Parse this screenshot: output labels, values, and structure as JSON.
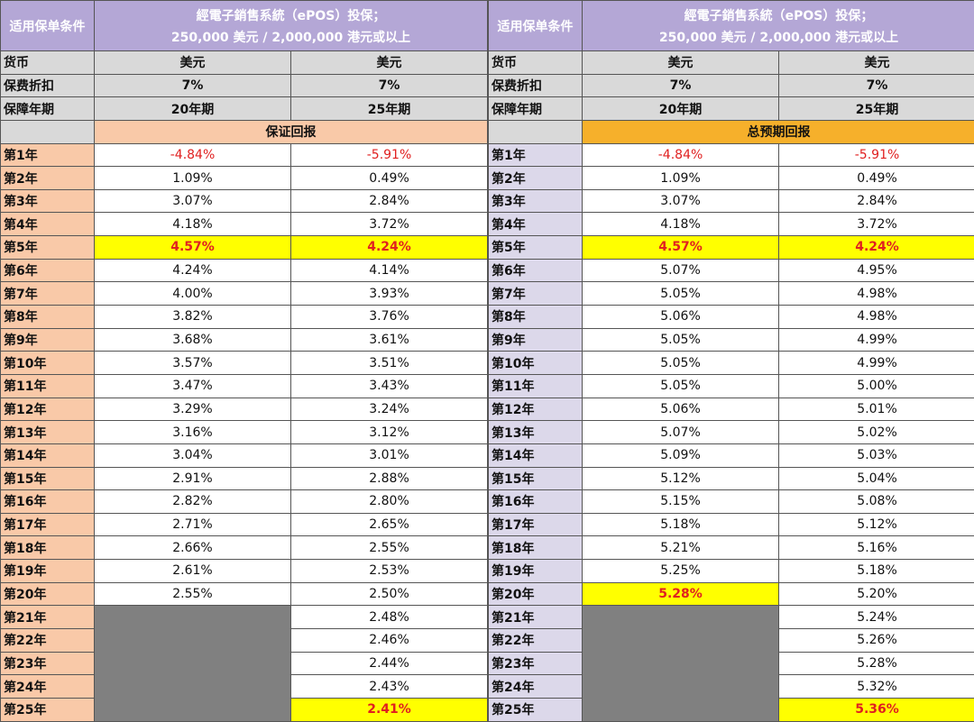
{
  "corner_label": "适用保单条件",
  "header_line1": "經電子銷售系統（ePOS）投保；",
  "header_line2": "250,000 美元 / 2,000,000 港元或以上",
  "currency_label": "货币",
  "currency_values": [
    "美元",
    "美元"
  ],
  "discount_label": "保费折扣",
  "discount_values": [
    "7%",
    "7%"
  ],
  "term_label": "保障年期",
  "term_values": [
    "20年期",
    "25年期"
  ],
  "left_section_title": "保证回报",
  "right_section_title": "总预期回报",
  "years": [
    "第1年",
    "第2年",
    "第3年",
    "第4年",
    "第5年",
    "第6年",
    "第7年",
    "第8年",
    "第9年",
    "第10年",
    "第11年",
    "第12年",
    "第13年",
    "第14年",
    "第15年",
    "第16年",
    "第17年",
    "第18年",
    "第19年",
    "第20年",
    "第21年",
    "第22年",
    "第23年",
    "第24年",
    "第25年"
  ],
  "guaranteed_20": [
    "-4.84%",
    "1.09%",
    "3.07%",
    "4.18%",
    "4.57%",
    "4.24%",
    "4.00%",
    "3.82%",
    "3.68%",
    "3.57%",
    "3.47%",
    "3.29%",
    "3.16%",
    "3.04%",
    "2.91%",
    "2.82%",
    "2.71%",
    "2.66%",
    "2.61%",
    "2.55%"
  ],
  "guaranteed_25": [
    "-5.91%",
    "0.49%",
    "2.84%",
    "3.72%",
    "4.24%",
    "4.14%",
    "3.93%",
    "3.76%",
    "3.61%",
    "3.51%",
    "3.43%",
    "3.24%",
    "3.12%",
    "3.01%",
    "2.88%",
    "2.80%",
    "2.65%",
    "2.55%",
    "2.53%",
    "2.50%",
    "2.48%",
    "2.46%",
    "2.44%",
    "2.43%",
    "2.41%"
  ],
  "total_20": [
    "-4.84%",
    "1.09%",
    "3.07%",
    "4.18%",
    "4.57%",
    "5.07%",
    "5.05%",
    "5.06%",
    "5.05%",
    "5.05%",
    "5.05%",
    "5.06%",
    "5.07%",
    "5.09%",
    "5.12%",
    "5.15%",
    "5.18%",
    "5.21%",
    "5.25%",
    "5.28%"
  ],
  "total_25": [
    "-5.91%",
    "0.49%",
    "2.84%",
    "3.72%",
    "4.24%",
    "4.95%",
    "4.98%",
    "4.98%",
    "4.99%",
    "4.99%",
    "5.00%",
    "5.01%",
    "5.02%",
    "5.03%",
    "5.04%",
    "5.08%",
    "5.12%",
    "5.16%",
    "5.18%",
    "5.20%",
    "5.24%",
    "5.26%",
    "5.28%",
    "5.32%",
    "5.36%"
  ],
  "colors": {
    "header": "#b4a7d6",
    "peach": "#f9c9a8",
    "orange": "#f6b02b",
    "highlight": "#ffff00",
    "negative": "#e02020",
    "blank": "#808080"
  }
}
